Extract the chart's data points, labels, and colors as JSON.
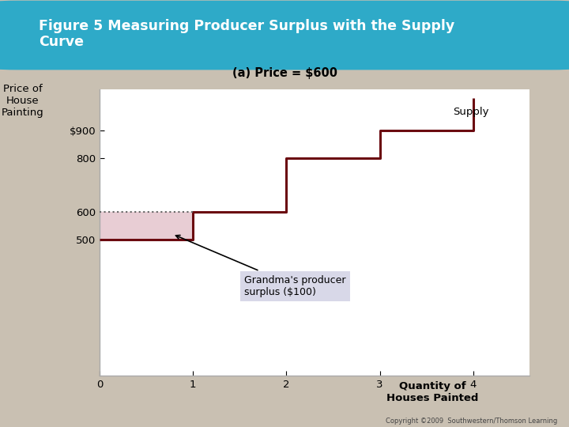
{
  "title": "Figure 5 Measuring Producer Surplus with the Supply\nCurve",
  "subtitle": "(a) Price = $600",
  "ylabel": "Price of\nHouse\nPainting",
  "xlabel": "Quantity of\nHouses Painted",
  "bg_color": "#c9c0b2",
  "header_color": "#2eaac8",
  "plot_bg": "#ffffff",
  "supply_color": "#6b0a10",
  "supply_linewidth": 2.2,
  "surplus_fill_color": "#e8cdd4",
  "dotted_line_color": "#666666",
  "yticks": [
    500,
    600,
    800,
    900
  ],
  "ytick_labels": [
    "500",
    "600",
    "800",
    "$900"
  ],
  "xticks": [
    0,
    1,
    2,
    3,
    4
  ],
  "xtick_labels": [
    "0",
    "1",
    "2",
    "3",
    "4"
  ],
  "price_level": 600,
  "grandma_cost": 500,
  "annotation_text": "Grandma's producer\nsurplus ($100)",
  "annotation_box_color": "#d8d8e8",
  "supply_label": "Supply",
  "copyright": "Copyright ©2009  Southwestern/Thomson Learning",
  "xlim": [
    0,
    4.6
  ],
  "ylim": [
    0,
    1050
  ],
  "step_x": [
    0,
    1,
    1,
    2,
    2,
    3,
    3,
    4,
    4
  ],
  "step_y": [
    500,
    500,
    600,
    600,
    800,
    800,
    900,
    900,
    1020
  ]
}
